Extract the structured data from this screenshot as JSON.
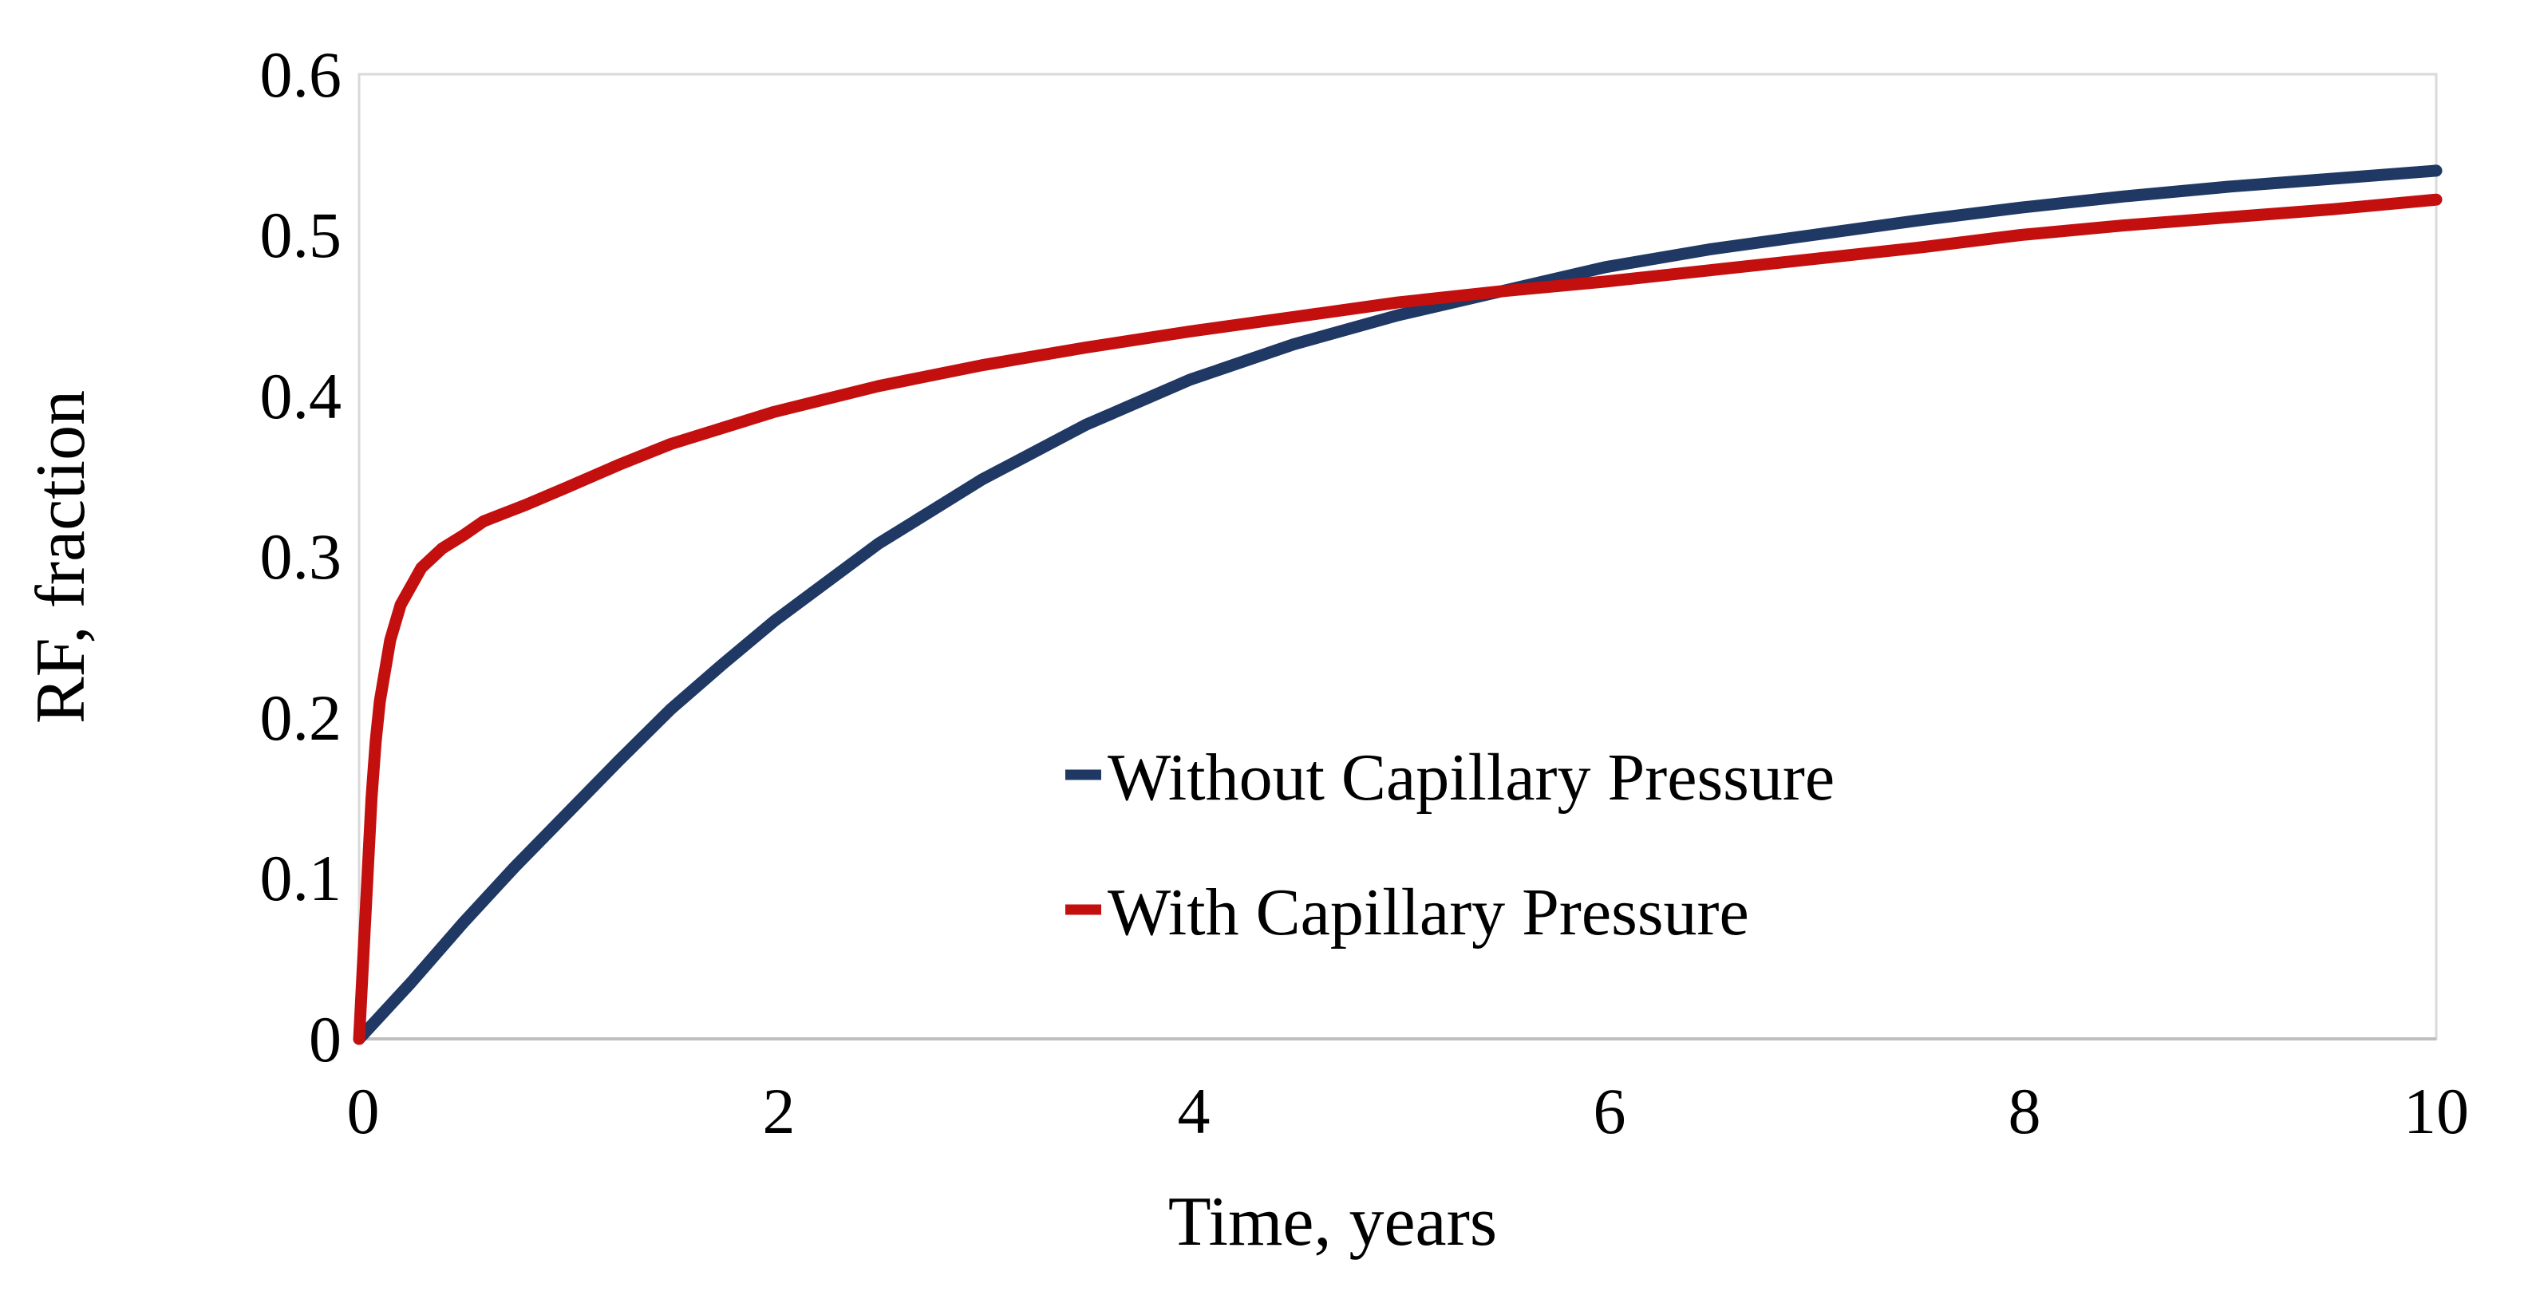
{
  "chart_data": {
    "type": "line",
    "title": "",
    "xlabel": "Time, years",
    "ylabel": "RF, fraction",
    "xlim": [
      0,
      10
    ],
    "ylim": [
      0,
      0.6
    ],
    "xticks": [
      "0",
      "2",
      "4",
      "6",
      "8",
      "10"
    ],
    "yticks": [
      "0.6",
      "0.5",
      "0.4",
      "0.3",
      "0.2",
      "0.1",
      "0"
    ],
    "grid": false,
    "legend_position": "inside-right-middle",
    "axis_box_color": "#d9d9d9",
    "series": [
      {
        "name": "Without Capillary Pressure",
        "color": "#1f3864",
        "points": [
          [
            0,
            0
          ],
          [
            0.25,
            0.035
          ],
          [
            0.5,
            0.072
          ],
          [
            0.75,
            0.107
          ],
          [
            1,
            0.14
          ],
          [
            1.25,
            0.173
          ],
          [
            1.5,
            0.205
          ],
          [
            1.75,
            0.233
          ],
          [
            2,
            0.26
          ],
          [
            2.5,
            0.308
          ],
          [
            3,
            0.348
          ],
          [
            3.5,
            0.382
          ],
          [
            4,
            0.41
          ],
          [
            4.5,
            0.432
          ],
          [
            5,
            0.45
          ],
          [
            5.5,
            0.465
          ],
          [
            6,
            0.48
          ],
          [
            6.5,
            0.491
          ],
          [
            7,
            0.5
          ],
          [
            7.5,
            0.509
          ],
          [
            8,
            0.517
          ],
          [
            8.5,
            0.524
          ],
          [
            9,
            0.53
          ],
          [
            9.5,
            0.535
          ],
          [
            10,
            0.54
          ]
        ]
      },
      {
        "name": "With Capillary Pressure",
        "color": "#c40f0f",
        "points": [
          [
            0,
            0
          ],
          [
            0.02,
            0.05
          ],
          [
            0.04,
            0.1
          ],
          [
            0.06,
            0.15
          ],
          [
            0.08,
            0.185
          ],
          [
            0.1,
            0.21
          ],
          [
            0.15,
            0.248
          ],
          [
            0.2,
            0.27
          ],
          [
            0.3,
            0.293
          ],
          [
            0.4,
            0.305
          ],
          [
            0.5,
            0.313
          ],
          [
            0.6,
            0.322
          ],
          [
            0.8,
            0.332
          ],
          [
            1,
            0.343
          ],
          [
            1.25,
            0.357
          ],
          [
            1.5,
            0.37
          ],
          [
            1.75,
            0.38
          ],
          [
            2,
            0.39
          ],
          [
            2.5,
            0.406
          ],
          [
            3,
            0.419
          ],
          [
            3.5,
            0.43
          ],
          [
            4,
            0.44
          ],
          [
            4.5,
            0.449
          ],
          [
            5,
            0.458
          ],
          [
            5.5,
            0.465
          ],
          [
            6,
            0.471
          ],
          [
            6.5,
            0.478
          ],
          [
            7,
            0.485
          ],
          [
            7.5,
            0.492
          ],
          [
            8,
            0.5
          ],
          [
            8.5,
            0.506
          ],
          [
            9,
            0.511
          ],
          [
            9.5,
            0.516
          ],
          [
            10,
            0.522
          ]
        ]
      }
    ]
  }
}
